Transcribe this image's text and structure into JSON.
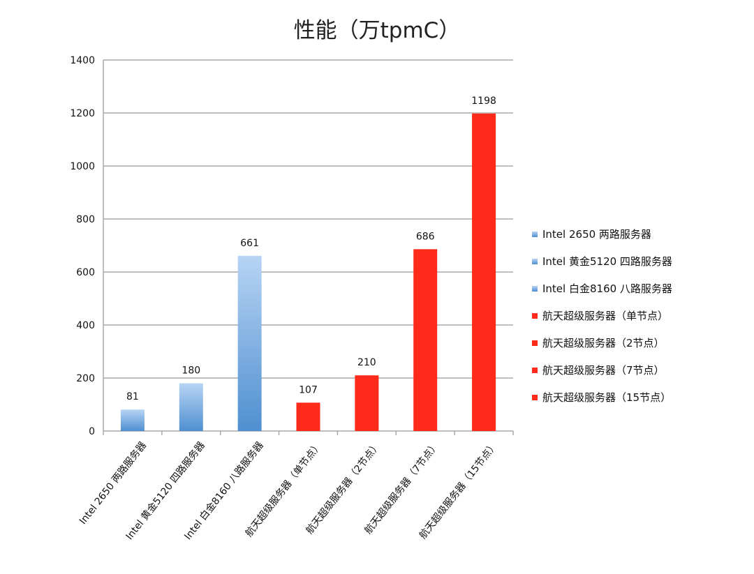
{
  "chart_data": {
    "type": "bar",
    "title": "性能（万tpmC）",
    "categories": [
      "Intel 2650 两路服务器",
      "Intel 黄金5120 四路服务器",
      "Intel 白金8160 八路服务器",
      "航天超级服务器（单节点）",
      "航天超级服务器（2节点）",
      "航天超级服务器（7节点）",
      "航天超级服务器（15节点）"
    ],
    "values": [
      81,
      180,
      661,
      107,
      210,
      686,
      1198
    ],
    "data_labels": [
      "81",
      "180",
      "661",
      "107",
      "210",
      "686",
      "1198"
    ],
    "series": [
      {
        "name": "Intel 2650 两路服务器",
        "color": "#5b9bd5"
      },
      {
        "name": "Intel 黄金5120 四路服务器",
        "color": "#5b9bd5"
      },
      {
        "name": "Intel 白金8160 八路服务器",
        "color": "#5b9bd5"
      },
      {
        "name": "航天超级服务器（单节点）",
        "color": "#ff2a1a"
      },
      {
        "name": "航天超级服务器（2节点）",
        "color": "#ff2a1a"
      },
      {
        "name": "航天超级服务器（7节点）",
        "color": "#ff2a1a"
      },
      {
        "name": "航天超级服务器（15节点）",
        "color": "#ff2a1a"
      }
    ],
    "xlabel": "",
    "ylabel": "",
    "ylim": [
      0,
      1400
    ],
    "yticks": [
      "0",
      "200",
      "400",
      "600",
      "800",
      "1000",
      "1200",
      "1400"
    ],
    "grid": true,
    "legend_position": "right",
    "colors": {
      "intel": "#5b9bd5",
      "intel_light": "#b7d4f4",
      "hangtian": "#ff2a1a",
      "grid": "#a9a9a9"
    }
  }
}
